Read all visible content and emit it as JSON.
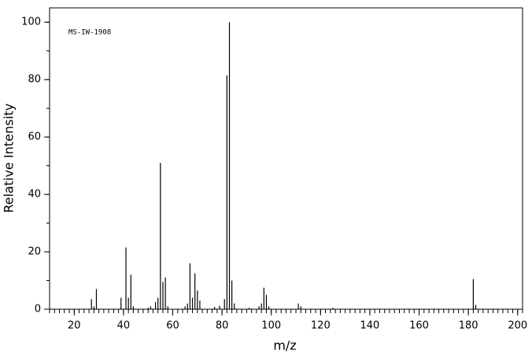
{
  "chart_data": {
    "type": "stem",
    "annotation": "MS-IW-1908",
    "x_label": "m/z",
    "y_label": "Relative Intensity",
    "xlim": [
      10,
      202
    ],
    "ylim": [
      0,
      105
    ],
    "xticks": [
      20,
      40,
      60,
      80,
      100,
      120,
      140,
      160,
      180,
      200
    ],
    "yticks": [
      0,
      20,
      40,
      60,
      80,
      100
    ],
    "color": "#000000",
    "x": [
      27,
      28,
      29,
      39,
      41,
      42,
      43,
      44,
      50,
      51,
      53,
      54,
      55,
      56,
      57,
      58,
      65,
      66,
      67,
      68,
      69,
      70,
      71,
      77,
      79,
      81,
      82,
      83,
      84,
      85,
      91,
      95,
      96,
      97,
      98,
      99,
      111,
      112,
      125,
      182,
      183
    ],
    "values": [
      3.5,
      1,
      7,
      4,
      21.5,
      4,
      12,
      1,
      0.5,
      1,
      2.5,
      4,
      51,
      9.5,
      11,
      1,
      1,
      2,
      16,
      4,
      12.5,
      6.5,
      3,
      0.8,
      1.2,
      3.5,
      81.5,
      100,
      10,
      2,
      0.5,
      1,
      2,
      7.5,
      5,
      1,
      2,
      1,
      0.5,
      10.5,
      1.5
    ]
  }
}
